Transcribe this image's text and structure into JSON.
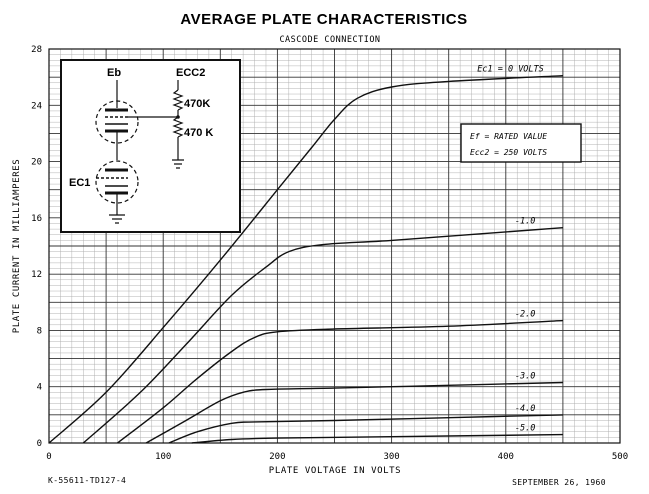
{
  "chart_data": {
    "type": "line",
    "title": "AVERAGE PLATE CHARACTERISTICS",
    "subtitle": "CASCODE CONNECTION",
    "xlabel": "PLATE VOLTAGE IN VOLTS",
    "ylabel": "PLATE CURRENT IN MILLIAMPERES",
    "xlim": [
      0,
      500
    ],
    "ylim": [
      0,
      28
    ],
    "xticks": [
      "0",
      "100",
      "200",
      "300",
      "400",
      "500"
    ],
    "yticks": [
      "0",
      "4",
      "8",
      "12",
      "16",
      "20",
      "24",
      "28"
    ],
    "grid": true,
    "series": [
      {
        "name": "Ec1 = 0 VOLTS",
        "x": [
          0,
          50,
          100,
          150,
          200,
          230,
          250,
          270,
          300,
          350,
          450
        ],
        "y": [
          0,
          3.6,
          8.2,
          13,
          18,
          21,
          23,
          24.5,
          25.3,
          25.7,
          26.1
        ]
      },
      {
        "name": "-1.0",
        "x": [
          30,
          80,
          120,
          160,
          190,
          210,
          240,
          300,
          400,
          450
        ],
        "y": [
          0,
          3.6,
          7,
          10.5,
          12.5,
          13.6,
          14.1,
          14.4,
          15,
          15.3
        ]
      },
      {
        "name": "-2.0",
        "x": [
          60,
          100,
          130,
          160,
          180,
          200,
          250,
          350,
          450
        ],
        "y": [
          0,
          2.5,
          4.6,
          6.5,
          7.5,
          7.9,
          8.1,
          8.3,
          8.7
        ]
      },
      {
        "name": "-3.0",
        "x": [
          85,
          120,
          150,
          170,
          190,
          250,
          350,
          450
        ],
        "y": [
          0,
          1.6,
          3,
          3.6,
          3.8,
          3.9,
          4.1,
          4.3
        ]
      },
      {
        "name": "-4.0",
        "x": [
          105,
          130,
          160,
          180,
          250,
          350,
          450
        ],
        "y": [
          0,
          0.8,
          1.4,
          1.5,
          1.6,
          1.8,
          2
        ]
      },
      {
        "name": "-5.0",
        "x": [
          125,
          160,
          200,
          300,
          450
        ],
        "y": [
          0,
          0.25,
          0.35,
          0.45,
          0.6
        ]
      }
    ],
    "curve_labels": [
      "Ec1 = 0 VOLTS",
      "-1.0",
      "-2.0",
      "-3.0",
      "-4.0",
      "-5.0"
    ]
  },
  "note": {
    "line1": "Ef = RATED VALUE",
    "line2": "Ecc2 = 250 VOLTS"
  },
  "schematic": {
    "eb": "Eb",
    "ecc2": "ECC2",
    "r1": "470K",
    "r2": "470 K",
    "ec1": "EC1"
  },
  "footer": {
    "left": "K-55611-TD127-4",
    "right": "SEPTEMBER 26, 1960"
  }
}
